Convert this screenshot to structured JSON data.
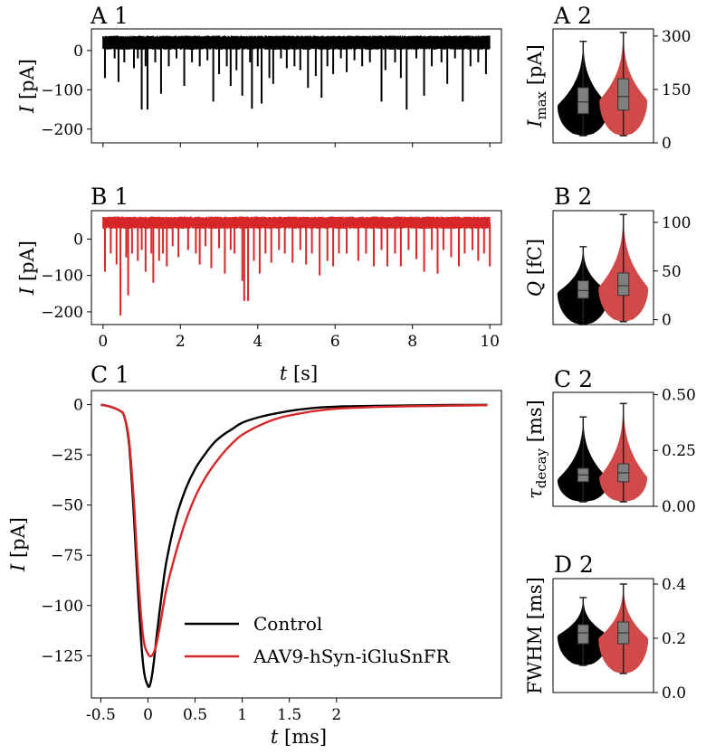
{
  "colors": {
    "control": "#000000",
    "iglusnfr": "#d62728",
    "iglusnfr_fill": "#d04a4a",
    "box": "#808080"
  },
  "chart_data": [
    {
      "id": "A1",
      "type": "line",
      "title": "A 1",
      "ylabel": "I [pA]",
      "ylim": [
        -235,
        55
      ],
      "yticks": [
        0,
        -100,
        -200
      ],
      "ytick_labels": [
        "0",
        "−100",
        "−200"
      ],
      "xlim": [
        -0.3,
        10.3
      ],
      "xticks": [
        0,
        2,
        4,
        6,
        8,
        10
      ],
      "series": [
        {
          "name": "Control",
          "color": "#000000",
          "baseline": 22,
          "noise_band": [
            2,
            38
          ],
          "events": [
            [
              0.05,
              -70
            ],
            [
              0.3,
              -20
            ],
            [
              0.4,
              -80
            ],
            [
              0.55,
              -30
            ],
            [
              0.8,
              -45
            ],
            [
              0.9,
              -20
            ],
            [
              1.0,
              -150
            ],
            [
              1.1,
              -40
            ],
            [
              1.15,
              -150
            ],
            [
              1.35,
              -30
            ],
            [
              1.5,
              -110
            ],
            [
              1.7,
              -40
            ],
            [
              1.9,
              -20
            ],
            [
              2.1,
              -90
            ],
            [
              2.3,
              -30
            ],
            [
              2.5,
              -40
            ],
            [
              2.7,
              -25
            ],
            [
              2.85,
              -130
            ],
            [
              3.0,
              -60
            ],
            [
              3.2,
              -40
            ],
            [
              3.3,
              -90
            ],
            [
              3.45,
              -50
            ],
            [
              3.6,
              -115
            ],
            [
              3.8,
              -30
            ],
            [
              3.85,
              -148
            ],
            [
              4.0,
              -40
            ],
            [
              4.1,
              -135
            ],
            [
              4.3,
              -70
            ],
            [
              4.4,
              -85
            ],
            [
              4.6,
              -20
            ],
            [
              4.75,
              -45
            ],
            [
              4.95,
              -40
            ],
            [
              5.1,
              -50
            ],
            [
              5.3,
              -95
            ],
            [
              5.5,
              -65
            ],
            [
              5.65,
              -120
            ],
            [
              5.8,
              -40
            ],
            [
              5.95,
              -60
            ],
            [
              6.15,
              -20
            ],
            [
              6.3,
              -55
            ],
            [
              6.5,
              -25
            ],
            [
              6.7,
              -40
            ],
            [
              6.9,
              -30
            ],
            [
              7.2,
              -130
            ],
            [
              7.3,
              -50
            ],
            [
              7.55,
              -30
            ],
            [
              7.7,
              -70
            ],
            [
              7.85,
              -150
            ],
            [
              8.1,
              -20
            ],
            [
              8.3,
              -115
            ],
            [
              8.5,
              -40
            ],
            [
              8.75,
              -30
            ],
            [
              8.9,
              -85
            ],
            [
              9.1,
              -20
            ],
            [
              9.3,
              -130
            ],
            [
              9.5,
              -40
            ],
            [
              9.7,
              -30
            ],
            [
              9.9,
              -60
            ]
          ]
        }
      ]
    },
    {
      "id": "A2",
      "type": "violin",
      "title": "A 2",
      "ylabel": "I_max [pA]",
      "ylim": [
        0,
        320
      ],
      "yticks": [
        0,
        150,
        300
      ],
      "ytick_labels": [
        "0",
        "150",
        "300"
      ],
      "violins": [
        {
          "name": "Control",
          "color": "#000000",
          "center_frac": 0.3,
          "min": 20,
          "q1": 82,
          "median": 115,
          "q3": 155,
          "max": 285,
          "mode": 105,
          "halfwidth": 28
        },
        {
          "name": "AAV9-hSyn-iGluSnFR",
          "color": "#d04a4a",
          "center_frac": 0.7,
          "min": 20,
          "q1": 92,
          "median": 130,
          "q3": 180,
          "max": 310,
          "mode": 120,
          "halfwidth": 26
        }
      ]
    },
    {
      "id": "B1",
      "type": "line",
      "title": "B 1",
      "ylabel": "I [pA]",
      "ylim": [
        -235,
        78
      ],
      "yticks": [
        0,
        -100,
        -200
      ],
      "ytick_labels": [
        "0",
        "−100",
        "−200"
      ],
      "xlim": [
        -0.3,
        10.3
      ],
      "xticks": [
        0,
        2,
        4,
        6,
        8,
        10
      ],
      "xtick_labels": [
        "0",
        "2",
        "4",
        "6",
        "8",
        "10"
      ],
      "xlabel": "t [s]",
      "series": [
        {
          "name": "AAV9-hSyn-iGluSnFR",
          "color": "#d62728",
          "baseline": 45,
          "noise_band": [
            28,
            62
          ],
          "events": [
            [
              0.05,
              -90
            ],
            [
              0.2,
              -40
            ],
            [
              0.35,
              -70
            ],
            [
              0.45,
              -210
            ],
            [
              0.6,
              -50
            ],
            [
              0.65,
              -155
            ],
            [
              0.75,
              -40
            ],
            [
              0.9,
              -60
            ],
            [
              1.0,
              -30
            ],
            [
              1.1,
              -90
            ],
            [
              1.25,
              -40
            ],
            [
              1.3,
              -120
            ],
            [
              1.45,
              -60
            ],
            [
              1.55,
              -40
            ],
            [
              1.65,
              -75
            ],
            [
              1.8,
              -20
            ],
            [
              1.95,
              -50
            ],
            [
              2.2,
              -30
            ],
            [
              2.4,
              -40
            ],
            [
              2.5,
              -70
            ],
            [
              2.65,
              -20
            ],
            [
              2.8,
              -80
            ],
            [
              3.0,
              -25
            ],
            [
              3.15,
              -95
            ],
            [
              3.3,
              -30
            ],
            [
              3.4,
              -40
            ],
            [
              3.6,
              -115
            ],
            [
              3.65,
              -170
            ],
            [
              3.75,
              -170
            ],
            [
              3.9,
              -60
            ],
            [
              4.05,
              -95
            ],
            [
              4.2,
              -40
            ],
            [
              4.35,
              -65
            ],
            [
              4.55,
              -30
            ],
            [
              4.7,
              -40
            ],
            [
              4.9,
              -65
            ],
            [
              5.1,
              -30
            ],
            [
              5.25,
              -70
            ],
            [
              5.4,
              -40
            ],
            [
              5.6,
              -100
            ],
            [
              5.8,
              -60
            ],
            [
              5.95,
              -75
            ],
            [
              6.1,
              -40
            ],
            [
              6.3,
              -40
            ],
            [
              6.6,
              -60
            ],
            [
              6.8,
              -40
            ],
            [
              7.0,
              -75
            ],
            [
              7.2,
              -30
            ],
            [
              7.35,
              -75
            ],
            [
              7.55,
              -40
            ],
            [
              7.7,
              -75
            ],
            [
              7.9,
              -30
            ],
            [
              8.1,
              -55
            ],
            [
              8.3,
              -90
            ],
            [
              8.5,
              -30
            ],
            [
              8.65,
              -95
            ],
            [
              8.8,
              -30
            ],
            [
              9.0,
              -50
            ],
            [
              9.2,
              -75
            ],
            [
              9.35,
              -40
            ],
            [
              9.55,
              -30
            ],
            [
              9.7,
              -60
            ],
            [
              9.85,
              -40
            ],
            [
              10.0,
              -75
            ]
          ]
        }
      ]
    },
    {
      "id": "B2",
      "type": "violin",
      "title": "B 2",
      "ylabel": "Q [fC]",
      "ylim": [
        -5,
        112
      ],
      "yticks": [
        0,
        50,
        100
      ],
      "ytick_labels": [
        "0",
        "50",
        "100"
      ],
      "violins": [
        {
          "name": "Control",
          "color": "#000000",
          "center_frac": 0.3,
          "min": -5,
          "q1": 22,
          "median": 30,
          "q3": 40,
          "max": 75,
          "mode": 28,
          "halfwidth": 28
        },
        {
          "name": "AAV9-hSyn-iGluSnFR",
          "color": "#d04a4a",
          "center_frac": 0.7,
          "min": -2,
          "q1": 25,
          "median": 35,
          "q3": 48,
          "max": 108,
          "mode": 33,
          "halfwidth": 27
        }
      ]
    },
    {
      "id": "C1",
      "type": "line",
      "title": "C 1",
      "ylabel": "I [pA]",
      "xlabel": "t [ms]",
      "ylim": [
        -146,
        7
      ],
      "yticks": [
        0,
        -25,
        -50,
        -75,
        -100,
        -125
      ],
      "ytick_labels": [
        "0",
        "−25",
        "−50",
        "−75",
        "−100",
        "−125"
      ],
      "xlim": [
        -0.6,
        3.75
      ],
      "xticks": [
        -0.5,
        0,
        0.5,
        1,
        1.5,
        2
      ],
      "xtick_labels": [
        "-0.5",
        "0",
        "0.5",
        "1",
        "1.5",
        "2"
      ],
      "legend": {
        "position": "lower-right",
        "entries": [
          "Control",
          "AAV9-hSyn-iGluSnFR"
        ]
      },
      "series": [
        {
          "name": "Control",
          "color": "#000000",
          "x": [
            -0.5,
            -0.4,
            -0.3,
            -0.25,
            -0.2,
            -0.15,
            -0.1,
            -0.05,
            0,
            0.03,
            0.06,
            0.1,
            0.15,
            0.2,
            0.3,
            0.4,
            0.5,
            0.6,
            0.7,
            0.8,
            0.9,
            1.0,
            1.2,
            1.4,
            1.6,
            1.8,
            2.0,
            2.4,
            2.8,
            3.2,
            3.6
          ],
          "y": [
            0,
            -1,
            -3,
            -6,
            -20,
            -55,
            -98,
            -130,
            -140,
            -138,
            -129,
            -112,
            -93,
            -77,
            -56,
            -42,
            -32,
            -25,
            -19,
            -15,
            -12,
            -9,
            -6,
            -4,
            -2.5,
            -1.5,
            -1,
            -0.6,
            -0.4,
            -0.2,
            -0.1
          ]
        },
        {
          "name": "AAV9-hSyn-iGluSnFR",
          "color": "#d62728",
          "x": [
            -0.5,
            -0.4,
            -0.3,
            -0.25,
            -0.2,
            -0.15,
            -0.1,
            -0.05,
            0,
            0.04,
            0.08,
            0.12,
            0.16,
            0.2,
            0.3,
            0.4,
            0.5,
            0.6,
            0.7,
            0.8,
            0.9,
            1.0,
            1.2,
            1.4,
            1.6,
            1.8,
            2.0,
            2.4,
            2.8,
            3.2,
            3.6
          ],
          "y": [
            0,
            -1,
            -3,
            -6,
            -18,
            -48,
            -88,
            -116,
            -124,
            -125,
            -121,
            -112,
            -101,
            -91,
            -73,
            -58,
            -46,
            -37,
            -30,
            -24,
            -19,
            -15,
            -10,
            -6.5,
            -4.5,
            -3,
            -2,
            -1.2,
            -0.8,
            -0.5,
            -0.3
          ]
        }
      ]
    },
    {
      "id": "C2",
      "type": "violin",
      "title": "C 2",
      "ylabel": "τ_decay [ms]",
      "ylim": [
        0,
        0.51
      ],
      "yticks": [
        0,
        0.25,
        0.5
      ],
      "ytick_labels": [
        "0.00",
        "0.25",
        "0.50"
      ],
      "violins": [
        {
          "name": "Control",
          "color": "#000000",
          "center_frac": 0.3,
          "min": 0.02,
          "q1": 0.11,
          "median": 0.14,
          "q3": 0.17,
          "max": 0.4,
          "mode": 0.12,
          "halfwidth": 28
        },
        {
          "name": "AAV9-hSyn-iGluSnFR",
          "color": "#d04a4a",
          "center_frac": 0.7,
          "min": 0.02,
          "q1": 0.11,
          "median": 0.15,
          "q3": 0.19,
          "max": 0.46,
          "mode": 0.13,
          "halfwidth": 26
        }
      ]
    },
    {
      "id": "D2",
      "type": "violin",
      "title": "D 2",
      "ylabel": "FWHM [ms]",
      "ylim": [
        0,
        0.42
      ],
      "yticks": [
        0,
        0.2,
        0.4
      ],
      "ytick_labels": [
        "0.0",
        "0.2",
        "0.4"
      ],
      "violins": [
        {
          "name": "Control",
          "color": "#000000",
          "center_frac": 0.3,
          "min": 0.1,
          "q1": 0.18,
          "median": 0.22,
          "q3": 0.25,
          "max": 0.35,
          "mode": 0.21,
          "halfwidth": 28
        },
        {
          "name": "AAV9-hSyn-iGluSnFR",
          "color": "#d04a4a",
          "center_frac": 0.7,
          "min": 0.07,
          "q1": 0.18,
          "median": 0.22,
          "q3": 0.26,
          "max": 0.4,
          "mode": 0.2,
          "halfwidth": 27
        }
      ]
    }
  ]
}
